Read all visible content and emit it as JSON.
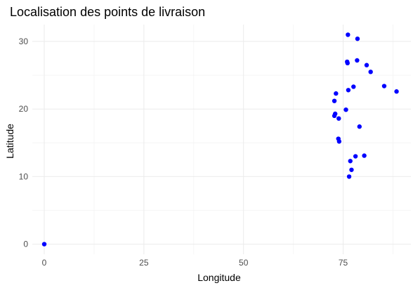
{
  "chart_data": {
    "type": "scatter",
    "title": "Localisation des points de livraison",
    "xlabel": "Longitude",
    "ylabel": "Latitude",
    "xlim": [
      -3,
      92
    ],
    "ylim": [
      -1.5,
      32.5
    ],
    "xticks": [
      0,
      25,
      50,
      75
    ],
    "yticks": [
      0,
      10,
      20,
      30
    ],
    "xtick_labels": [
      "0",
      "25",
      "50",
      "75"
    ],
    "ytick_labels": [
      "0",
      "10",
      "20",
      "30"
    ],
    "grid": true,
    "point_color": "#0000ff",
    "points": [
      {
        "x": 0,
        "y": 0
      },
      {
        "x": 76.2,
        "y": 31.0
      },
      {
        "x": 78.6,
        "y": 30.4
      },
      {
        "x": 76.0,
        "y": 27.0
      },
      {
        "x": 76.1,
        "y": 26.8
      },
      {
        "x": 78.5,
        "y": 27.2
      },
      {
        "x": 80.9,
        "y": 26.5
      },
      {
        "x": 81.9,
        "y": 25.5
      },
      {
        "x": 85.3,
        "y": 23.4
      },
      {
        "x": 88.4,
        "y": 22.6
      },
      {
        "x": 77.6,
        "y": 23.3
      },
      {
        "x": 76.3,
        "y": 22.8
      },
      {
        "x": 73.2,
        "y": 22.3
      },
      {
        "x": 72.8,
        "y": 21.2
      },
      {
        "x": 75.7,
        "y": 19.9
      },
      {
        "x": 73.0,
        "y": 19.3
      },
      {
        "x": 72.8,
        "y": 19.0
      },
      {
        "x": 73.9,
        "y": 18.6
      },
      {
        "x": 79.1,
        "y": 17.4
      },
      {
        "x": 73.8,
        "y": 15.6
      },
      {
        "x": 74.0,
        "y": 15.2
      },
      {
        "x": 80.3,
        "y": 13.1
      },
      {
        "x": 78.1,
        "y": 13.0
      },
      {
        "x": 76.8,
        "y": 12.3
      },
      {
        "x": 77.1,
        "y": 11.0
      },
      {
        "x": 76.5,
        "y": 10.0
      }
    ]
  }
}
